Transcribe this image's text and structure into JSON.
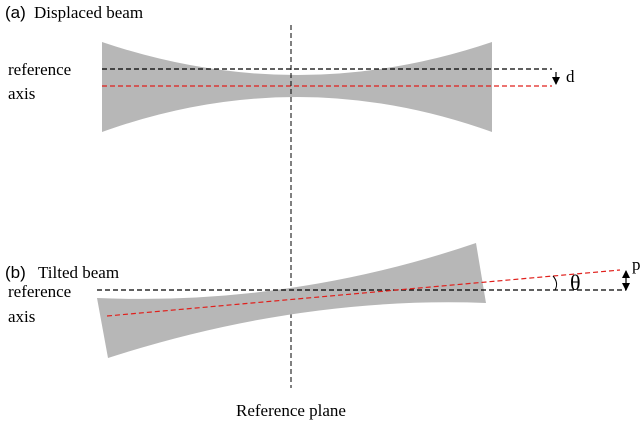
{
  "panel_a": {
    "tag": "(a)",
    "title": "Displaced beam",
    "axis_label_1": "reference",
    "axis_label_2": "axis",
    "offset_label": "d"
  },
  "panel_b": {
    "tag": "(b)",
    "title": "Tilted beam",
    "axis_label_1": "reference",
    "axis_label_2": "axis",
    "angle_label": "θ",
    "offset_label": "p"
  },
  "plane_label": "Reference plane"
}
